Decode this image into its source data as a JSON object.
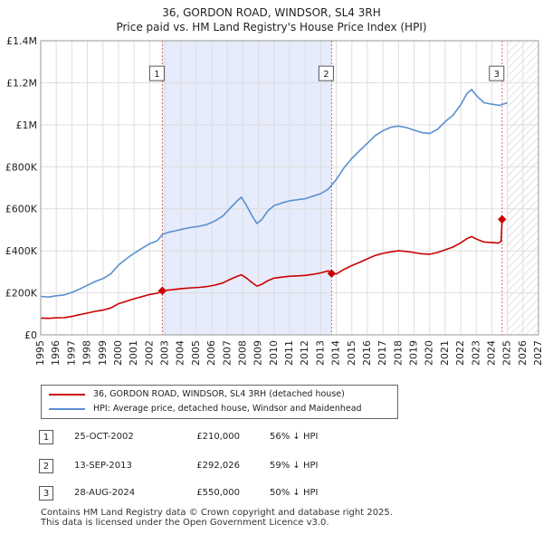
{
  "chart_data": {
    "type": "line",
    "title": "36, GORDON ROAD, WINDSOR, SL4 3RH",
    "subtitle": "Price paid vs. HM Land Registry's House Price Index (HPI)",
    "xlim": [
      1995,
      2027
    ],
    "ylim": [
      0,
      1400000
    ],
    "x_ticks": [
      "1995",
      "1996",
      "1997",
      "1998",
      "1999",
      "2000",
      "2001",
      "2002",
      "2003",
      "2004",
      "2005",
      "2006",
      "2007",
      "2008",
      "2009",
      "2010",
      "2011",
      "2012",
      "2013",
      "2014",
      "2015",
      "2016",
      "2017",
      "2018",
      "2019",
      "2020",
      "2021",
      "2022",
      "2023",
      "2024",
      "2025",
      "2026",
      "2027"
    ],
    "y_ticks": [
      {
        "value": 0,
        "label": "£0"
      },
      {
        "value": 200000,
        "label": "£200K"
      },
      {
        "value": 400000,
        "label": "£400K"
      },
      {
        "value": 600000,
        "label": "£600K"
      },
      {
        "value": 800000,
        "label": "£800K"
      },
      {
        "value": 1000000,
        "label": "£1M"
      },
      {
        "value": 1200000,
        "label": "£1.2M"
      },
      {
        "value": 1400000,
        "label": "£1.4M"
      }
    ],
    "grid": true,
    "shaded_ranges": [
      [
        2002.82,
        2013.7
      ]
    ],
    "forecast_from": 2025.0,
    "series": [
      {
        "name": "36, GORDON ROAD, WINDSOR, SL4 3RH (detached house)",
        "color": "#cc0000",
        "points": [
          [
            1995.0,
            80000
          ],
          [
            1995.5,
            79000
          ],
          [
            1996.0,
            81000
          ],
          [
            1996.5,
            82000
          ],
          [
            1997.0,
            88000
          ],
          [
            1997.5,
            96000
          ],
          [
            1998.0,
            104000
          ],
          [
            1998.5,
            112000
          ],
          [
            1999.0,
            118000
          ],
          [
            1999.5,
            128000
          ],
          [
            2000.0,
            148000
          ],
          [
            2000.5,
            160000
          ],
          [
            2001.0,
            172000
          ],
          [
            2001.5,
            182000
          ],
          [
            2002.0,
            192000
          ],
          [
            2002.5,
            198000
          ],
          [
            2002.82,
            210000
          ],
          [
            2003.2,
            213000
          ],
          [
            2003.7,
            217000
          ],
          [
            2004.2,
            221000
          ],
          [
            2004.7,
            224000
          ],
          [
            2005.2,
            226000
          ],
          [
            2005.7,
            230000
          ],
          [
            2006.2,
            237000
          ],
          [
            2006.7,
            247000
          ],
          [
            2007.2,
            265000
          ],
          [
            2007.6,
            278000
          ],
          [
            2007.9,
            286000
          ],
          [
            2008.2,
            272000
          ],
          [
            2008.6,
            248000
          ],
          [
            2008.9,
            232000
          ],
          [
            2009.2,
            240000
          ],
          [
            2009.6,
            258000
          ],
          [
            2010.0,
            270000
          ],
          [
            2010.5,
            275000
          ],
          [
            2011.0,
            279000
          ],
          [
            2011.5,
            281000
          ],
          [
            2012.0,
            283000
          ],
          [
            2012.5,
            288000
          ],
          [
            2013.0,
            295000
          ],
          [
            2013.5,
            305000
          ],
          [
            2013.7,
            292026
          ],
          [
            2014.0,
            290000
          ],
          [
            2014.5,
            312000
          ],
          [
            2015.0,
            330000
          ],
          [
            2015.5,
            345000
          ],
          [
            2016.0,
            362000
          ],
          [
            2016.5,
            378000
          ],
          [
            2017.0,
            388000
          ],
          [
            2017.5,
            395000
          ],
          [
            2018.0,
            400000
          ],
          [
            2018.5,
            397000
          ],
          [
            2019.0,
            392000
          ],
          [
            2019.5,
            386000
          ],
          [
            2020.0,
            384000
          ],
          [
            2020.5,
            392000
          ],
          [
            2021.0,
            405000
          ],
          [
            2021.5,
            418000
          ],
          [
            2022.0,
            438000
          ],
          [
            2022.4,
            458000
          ],
          [
            2022.7,
            468000
          ],
          [
            2023.0,
            456000
          ],
          [
            2023.5,
            442000
          ],
          [
            2024.0,
            440000
          ],
          [
            2024.4,
            437000
          ],
          [
            2024.6,
            445000
          ],
          [
            2024.66,
            550000
          ]
        ]
      },
      {
        "name": "HPI: Average price, detached house, Windsor and Maidenhead",
        "color": "#5b8fd0",
        "points": [
          [
            1995.0,
            183000
          ],
          [
            1995.5,
            180000
          ],
          [
            1996.0,
            186000
          ],
          [
            1996.5,
            190000
          ],
          [
            1997.0,
            202000
          ],
          [
            1997.5,
            218000
          ],
          [
            1998.0,
            236000
          ],
          [
            1998.5,
            254000
          ],
          [
            1999.0,
            268000
          ],
          [
            1999.5,
            290000
          ],
          [
            2000.0,
            332000
          ],
          [
            2000.5,
            362000
          ],
          [
            2001.0,
            388000
          ],
          [
            2001.5,
            412000
          ],
          [
            2002.0,
            434000
          ],
          [
            2002.5,
            448000
          ],
          [
            2002.82,
            478000
          ],
          [
            2003.2,
            488000
          ],
          [
            2003.7,
            496000
          ],
          [
            2004.2,
            505000
          ],
          [
            2004.7,
            512000
          ],
          [
            2005.2,
            517000
          ],
          [
            2005.7,
            526000
          ],
          [
            2006.2,
            542000
          ],
          [
            2006.7,
            565000
          ],
          [
            2007.2,
            605000
          ],
          [
            2007.6,
            636000
          ],
          [
            2007.9,
            655000
          ],
          [
            2008.2,
            620000
          ],
          [
            2008.6,
            565000
          ],
          [
            2008.9,
            530000
          ],
          [
            2009.2,
            548000
          ],
          [
            2009.6,
            590000
          ],
          [
            2010.0,
            615000
          ],
          [
            2010.5,
            628000
          ],
          [
            2011.0,
            638000
          ],
          [
            2011.5,
            643000
          ],
          [
            2012.0,
            648000
          ],
          [
            2012.5,
            660000
          ],
          [
            2013.0,
            672000
          ],
          [
            2013.5,
            695000
          ],
          [
            2013.7,
            712000
          ],
          [
            2014.0,
            740000
          ],
          [
            2014.5,
            795000
          ],
          [
            2015.0,
            840000
          ],
          [
            2015.5,
            876000
          ],
          [
            2016.0,
            912000
          ],
          [
            2016.5,
            948000
          ],
          [
            2017.0,
            972000
          ],
          [
            2017.5,
            988000
          ],
          [
            2018.0,
            994000
          ],
          [
            2018.5,
            987000
          ],
          [
            2019.0,
            975000
          ],
          [
            2019.5,
            963000
          ],
          [
            2020.0,
            958000
          ],
          [
            2020.5,
            978000
          ],
          [
            2021.0,
            1015000
          ],
          [
            2021.5,
            1045000
          ],
          [
            2022.0,
            1095000
          ],
          [
            2022.4,
            1148000
          ],
          [
            2022.7,
            1168000
          ],
          [
            2023.0,
            1140000
          ],
          [
            2023.5,
            1105000
          ],
          [
            2024.0,
            1098000
          ],
          [
            2024.5,
            1092000
          ],
          [
            2025.0,
            1105000
          ]
        ]
      }
    ],
    "markers": [
      {
        "label": "1",
        "x": 2002.82,
        "y": 210000,
        "box_y": 1210000
      },
      {
        "label": "2",
        "x": 2013.7,
        "y": 292026,
        "box_y": 1210000
      },
      {
        "label": "3",
        "x": 2024.66,
        "y": 550000,
        "box_y": 1210000
      }
    ]
  },
  "legend": {
    "items": [
      {
        "label": "36, GORDON ROAD, WINDSOR, SL4 3RH (detached house)",
        "color": "#cc0000"
      },
      {
        "label": "HPI: Average price, detached house, Windsor and Maidenhead",
        "color": "#5b8fd0"
      }
    ]
  },
  "transactions": [
    {
      "id": "1",
      "date": "25-OCT-2002",
      "price": "£210,000",
      "hpi": "56% ↓ HPI"
    },
    {
      "id": "2",
      "date": "13-SEP-2013",
      "price": "£292,026",
      "hpi": "59% ↓ HPI"
    },
    {
      "id": "3",
      "date": "28-AUG-2024",
      "price": "£550,000",
      "hpi": "50% ↓ HPI"
    }
  ],
  "footer": {
    "line1": "Contains HM Land Registry data © Crown copyright and database right 2025.",
    "line2": "This data is licensed under the Open Government Licence v3.0."
  }
}
